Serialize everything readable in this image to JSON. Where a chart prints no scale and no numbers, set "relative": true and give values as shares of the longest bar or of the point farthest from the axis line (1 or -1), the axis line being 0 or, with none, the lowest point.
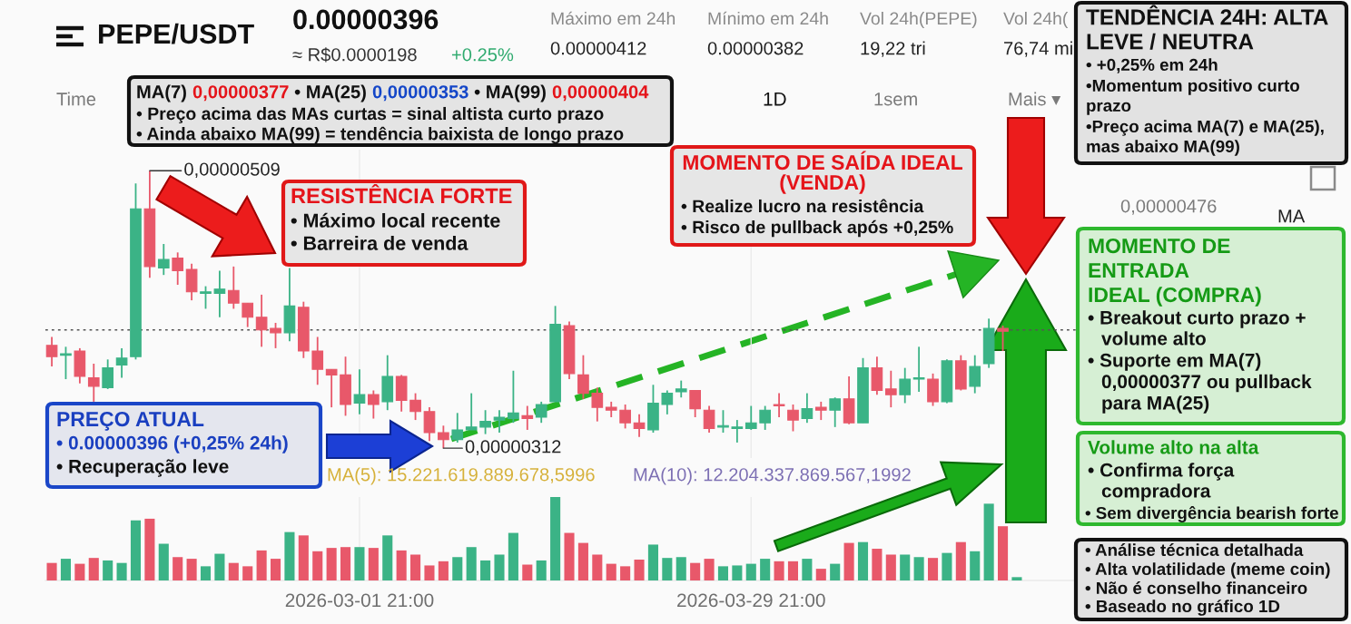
{
  "chart_data": [
    {
      "type": "candlestick",
      "title": "PEPE/USDT",
      "x": [
        "2026-02-07T21:00",
        "2026-02-08T21:00",
        "2026-02-09T21:00",
        "2026-02-10T21:00",
        "2026-02-11T21:00",
        "2026-02-12T21:00",
        "2026-02-13T21:00",
        "2026-02-14T21:00",
        "2026-02-15T21:00",
        "2026-02-16T21:00",
        "2026-02-17T21:00",
        "2026-02-18T21:00",
        "2026-02-19T21:00",
        "2026-02-20T21:00",
        "2026-02-21T21:00",
        "2026-02-22T21:00",
        "2026-02-23T21:00",
        "2026-02-24T21:00",
        "2026-02-25T21:00",
        "2026-02-26T21:00",
        "2026-02-27T21:00",
        "2026-02-28T21:00",
        "2026-03-01T21:00",
        "2026-03-02T21:00",
        "2026-03-03T21:00",
        "2026-03-04T21:00",
        "2026-03-05T21:00",
        "2026-03-06T21:00",
        "2026-03-07T21:00",
        "2026-03-08T21:00",
        "2026-03-09T21:00",
        "2026-03-10T21:00",
        "2026-03-11T21:00",
        "2026-03-12T21:00",
        "2026-03-13T21:00",
        "2026-03-14T21:00",
        "2026-03-15T21:00",
        "2026-03-16T21:00",
        "2026-03-17T21:00",
        "2026-03-18T21:00",
        "2026-03-19T21:00",
        "2026-03-20T21:00",
        "2026-03-21T21:00",
        "2026-03-22T21:00",
        "2026-03-23T21:00",
        "2026-03-24T21:00",
        "2026-03-25T21:00",
        "2026-03-26T21:00",
        "2026-03-27T21:00",
        "2026-03-28T21:00",
        "2026-03-29T21:00",
        "2026-03-30T21:00",
        "2026-03-31T21:00",
        "2026-04-01T21:00",
        "2026-04-02T21:00",
        "2026-04-03T21:00",
        "2026-04-04T21:00",
        "2026-04-05T21:00",
        "2026-04-06T21:00",
        "2026-04-07T21:00",
        "2026-04-08T21:00",
        "2026-04-09T21:00",
        "2026-04-10T21:00",
        "2026-04-11T21:00",
        "2026-04-12T21:00",
        "2026-04-13T21:00",
        "2026-04-14T21:00",
        "2026-04-15T21:00",
        "2026-04-16T21:00"
      ],
      "ohlc": [
        [
          3.85e-06,
          3.91e-06,
          3.7e-06,
          3.77e-06
        ],
        [
          3.78e-06,
          3.84e-06,
          3.61e-06,
          3.79e-06
        ],
        [
          3.81e-06,
          3.83e-06,
          3.58e-06,
          3.63e-06
        ],
        [
          3.62e-06,
          3.72e-06,
          3.45e-06,
          3.56e-06
        ],
        [
          3.55e-06,
          3.75e-06,
          3.54e-06,
          3.69e-06
        ],
        [
          3.71e-06,
          3.83e-06,
          3.62e-06,
          3.76e-06
        ],
        [
          3.77e-06,
          5e-06,
          3.75e-06,
          4.82e-06
        ],
        [
          4.82e-06,
          5.09e-06,
          4.33e-06,
          4.41e-06
        ],
        [
          4.4e-06,
          4.57e-06,
          4.35e-06,
          4.46e-06
        ],
        [
          4.47e-06,
          4.51e-06,
          4.28e-06,
          4.38e-06
        ],
        [
          4.39e-06,
          4.43e-06,
          4.17e-06,
          4.23e-06
        ],
        [
          4.22e-06,
          4.27e-06,
          4.11e-06,
          4.23e-06
        ],
        [
          4.22e-06,
          4.38e-06,
          4.05e-06,
          4.25e-06
        ],
        [
          4.24e-06,
          4.41e-06,
          4.11e-06,
          4.15e-06
        ],
        [
          4.15e-06,
          4.15e-06,
          3.98e-06,
          4.05e-06
        ],
        [
          4.05e-06,
          4.21e-06,
          3.84e-06,
          3.96e-06
        ],
        [
          3.97e-06,
          4.01e-06,
          3.83e-06,
          3.94e-06
        ],
        [
          3.94e-06,
          4.4e-06,
          3.88e-06,
          4.13e-06
        ],
        [
          4.12e-06,
          4.16e-06,
          3.76e-06,
          3.81e-06
        ],
        [
          3.81e-06,
          3.91e-06,
          3.57e-06,
          3.68e-06
        ],
        [
          3.68e-06,
          3.68e-06,
          3.41e-06,
          3.64e-06
        ],
        [
          3.64e-06,
          3.77e-06,
          3.35e-06,
          3.43e-06
        ],
        [
          3.44e-06,
          3.68e-06,
          3.36e-06,
          3.5e-06
        ],
        [
          3.5e-06,
          3.53e-06,
          3.33e-06,
          3.43e-06
        ],
        [
          3.45e-06,
          3.78e-06,
          3.39e-06,
          3.63e-06
        ],
        [
          3.63e-06,
          3.64e-06,
          3.38e-06,
          3.46e-06
        ],
        [
          3.46e-06,
          3.51e-06,
          3.32e-06,
          3.38e-06
        ],
        [
          3.38e-06,
          3.41e-06,
          3.17e-06,
          3.23e-06
        ],
        [
          3.23e-06,
          3.28e-06,
          3.12e-06,
          3.18e-06
        ],
        [
          3.18e-06,
          3.37e-06,
          3.16e-06,
          3.25e-06
        ],
        [
          3.25e-06,
          3.51e-06,
          3.25e-06,
          3.27e-06
        ],
        [
          3.27e-06,
          3.39e-06,
          3.22e-06,
          3.31e-06
        ],
        [
          3.32e-06,
          3.39e-06,
          3.23e-06,
          3.34e-06
        ],
        [
          3.33e-06,
          3.67e-06,
          3.3e-06,
          3.37e-06
        ],
        [
          3.35e-06,
          3.42e-06,
          3.25e-06,
          3.33e-06
        ],
        [
          3.34e-06,
          3.45e-06,
          3.3e-06,
          3.43e-06
        ],
        [
          3.45e-06,
          4.13e-06,
          3.45e-06,
          4e-06
        ],
        [
          3.99e-06,
          4.02e-06,
          3.61e-06,
          3.65e-06
        ],
        [
          3.64e-06,
          3.78e-06,
          3.47e-06,
          3.51e-06
        ],
        [
          3.51e-06,
          3.55e-06,
          3.31e-06,
          3.41e-06
        ],
        [
          3.41e-06,
          3.45e-06,
          3.34e-06,
          3.39e-06
        ],
        [
          3.39e-06,
          3.43e-06,
          3.26e-06,
          3.3e-06
        ],
        [
          3.3e-06,
          3.36e-06,
          3.2e-06,
          3.26e-06
        ],
        [
          3.25e-06,
          3.57e-06,
          3.23e-06,
          3.44e-06
        ],
        [
          3.43e-06,
          3.53e-06,
          3.36e-06,
          3.51e-06
        ],
        [
          3.52e-06,
          3.6e-06,
          3.48e-06,
          3.54e-06
        ],
        [
          3.53e-06,
          3.53e-06,
          3.34e-06,
          3.4e-06
        ],
        [
          3.39e-06,
          3.42e-06,
          3.23e-06,
          3.26e-06
        ],
        [
          3.27e-06,
          3.39e-06,
          3.23e-06,
          3.28e-06
        ],
        [
          3.26e-06,
          3.32e-06,
          3.16e-06,
          3.27e-06
        ],
        [
          3.26e-06,
          3.42e-06,
          3.25e-06,
          3.3e-06
        ],
        [
          3.3e-06,
          3.42e-06,
          3.25e-06,
          3.39e-06
        ],
        [
          3.43e-06,
          3.51e-06,
          3.34e-06,
          3.42e-06
        ],
        [
          3.39e-06,
          3.43e-06,
          3.24e-06,
          3.32e-06
        ],
        [
          3.33e-06,
          3.51e-06,
          3.3e-06,
          3.4e-06
        ],
        [
          3.41e-06,
          3.45e-06,
          3.32e-06,
          3.39e-06
        ],
        [
          3.39e-06,
          3.48e-06,
          3.27e-06,
          3.47e-06
        ],
        [
          3.47e-06,
          3.63e-06,
          3.29e-06,
          3.3e-06
        ],
        [
          3.3e-06,
          3.76e-06,
          3.3e-06,
          3.69e-06
        ],
        [
          3.69e-06,
          3.77e-06,
          3.5e-06,
          3.53e-06
        ],
        [
          3.54e-06,
          3.67e-06,
          3.41e-06,
          3.5e-06
        ],
        [
          3.5e-06,
          3.69e-06,
          3.44e-06,
          3.61e-06
        ],
        [
          3.61e-06,
          3.84e-06,
          3.52e-06,
          3.62e-06
        ],
        [
          3.61e-06,
          3.65e-06,
          3.42e-06,
          3.45e-06
        ],
        [
          3.45e-06,
          3.75e-06,
          3.44e-06,
          3.74e-06
        ],
        [
          3.74e-06,
          3.78e-06,
          3.53e-06,
          3.54e-06
        ],
        [
          3.56e-06,
          3.78e-06,
          3.51e-06,
          3.7e-06
        ],
        [
          3.72e-06,
          4.04e-06,
          3.69e-06,
          3.97e-06
        ],
        [
          3.97e-06,
          3.99e-06,
          3.81e-06,
          3.95e-06
        ]
      ],
      "colors": [
        "#e8586a",
        "#3bb386",
        "#e8586a",
        "#e8586a",
        "#3bb386",
        "#3bb386",
        "#3bb386",
        "#e8586a",
        "#3bb386",
        "#e8586a",
        "#e8586a",
        "#3bb386",
        "#3bb386",
        "#e8586a",
        "#e8586a",
        "#e8586a",
        "#e8586a",
        "#3bb386",
        "#e8586a",
        "#e8586a",
        "#e8586a",
        "#e8586a",
        "#3bb386",
        "#e8586a",
        "#3bb386",
        "#e8586a",
        "#e8586a",
        "#e8586a",
        "#e8586a",
        "#3bb386",
        "#3bb386",
        "#3bb386",
        "#3bb386",
        "#3bb386",
        "#e8586a",
        "#3bb386",
        "#3bb386",
        "#e8586a",
        "#e8586a",
        "#e8586a",
        "#e8586a",
        "#e8586a",
        "#e8586a",
        "#3bb386",
        "#3bb386",
        "#3bb386",
        "#e8586a",
        "#e8586a",
        "#3bb386",
        "#3bb386",
        "#3bb386",
        "#3bb386",
        "#e8586a",
        "#e8586a",
        "#3bb386",
        "#e8586a",
        "#3bb386",
        "#e8586a",
        "#3bb386",
        "#e8586a",
        "#e8586a",
        "#3bb386",
        "#3bb386",
        "#e8586a",
        "#3bb386",
        "#e8586a",
        "#3bb386",
        "#3bb386",
        "#e8586a"
      ],
      "xlim": [
        "2026-02-07T10:00",
        "2026-04-24T12:00"
      ],
      "xticks": [
        {
          "value": "2026-03-01T21:00",
          "label": null
        },
        {
          "value": "2026-03-29T21:00",
          "label": null
        }
      ],
      "ylim": [
        3.05e-06,
        5.24e-06
      ],
      "tick_labels": false,
      "grid": "x",
      "ref_lines": [
        {
          "axis": "y",
          "value": 3.96e-06,
          "color": "#555555",
          "line_style": "dotted"
        }
      ],
      "annotations": [
        "0.00000396",
        "≈ R$0.0000198",
        "+0.25%",
        "Máximo em 24h",
        "0.00000412",
        "Mínimo em 24h",
        "0.00000382",
        "Vol 24h(PEPE)",
        "19,22 tri",
        "Vol 24h(",
        "76,74 mi",
        "Time",
        "1D",
        "1sem",
        "Mais ▾",
        "MA(7)",
        "0,00000377",
        "• MA(25)",
        "0,00000353",
        "• MA(99)",
        "0,00000404",
        "• Preço acima das MAs curtas = sinal altista curto prazo",
        "• Ainda abaixo MA(99) = tendência baixista de longo prazo",
        {
          "text": "0,00000509",
          "x": "2026-02-14T21:00",
          "y": 5.09e-06
        },
        {
          "text": "0,00000312",
          "x": "2026-03-07T21:00",
          "y": 3.12e-06
        },
        "RESISTÊNCIA FORTE",
        "• Máximo local recente",
        "• Barreira de venda",
        "MOMENTO DE SAÍDA IDEAL\n(VENDA)",
        "• Realize lucro na resistência",
        "• Risco de pullback após +0,25%",
        "PREÇO ATUAL",
        "• 0.00000396 (+0,25% 24h)",
        "• Recuperação leve",
        "TENDÊNCIA 24H: ALTA\nLEVE / NEUTRA",
        "• +0,25% em 24h",
        "•Momentum positivo curto\nprazo",
        "•Preço acima MA(7) e MA(25),\nmas abaixo MA(99)",
        "MOMENTO DE\nENTRADA\nIDEAL (COMPRA)",
        "• Breakout curto prazo +\nvolume alto",
        "• Suporte em MA(7)\n0,00000377 ou pullback\npara MA(25)",
        "Volume alto na alta",
        "• Confirma força\ncompradora",
        "• Sem divergência bearish forte",
        "• Análise técnica detalhada",
        "• Alta volatilidade (meme coin)",
        "• Não é conselho financeiro",
        "• Baseado no gráfico 1D",
        "MA",
        "0,00000476"
      ]
    },
    {
      "type": "bar",
      "relative": true,
      "x": [
        "2026-02-07T21:00",
        "2026-02-08T21:00",
        "2026-02-09T21:00",
        "2026-02-10T21:00",
        "2026-02-11T21:00",
        "2026-02-12T21:00",
        "2026-02-13T21:00",
        "2026-02-14T21:00",
        "2026-02-15T21:00",
        "2026-02-16T21:00",
        "2026-02-17T21:00",
        "2026-02-18T21:00",
        "2026-02-19T21:00",
        "2026-02-20T21:00",
        "2026-02-21T21:00",
        "2026-02-22T21:00",
        "2026-02-23T21:00",
        "2026-02-24T21:00",
        "2026-02-25T21:00",
        "2026-02-26T21:00",
        "2026-02-27T21:00",
        "2026-02-28T21:00",
        "2026-03-01T21:00",
        "2026-03-02T21:00",
        "2026-03-03T21:00",
        "2026-03-04T21:00",
        "2026-03-05T21:00",
        "2026-03-06T21:00",
        "2026-03-07T21:00",
        "2026-03-08T21:00",
        "2026-03-09T21:00",
        "2026-03-10T21:00",
        "2026-03-11T21:00",
        "2026-03-12T21:00",
        "2026-03-13T21:00",
        "2026-03-14T21:00",
        "2026-03-15T21:00",
        "2026-03-16T21:00",
        "2026-03-17T21:00",
        "2026-03-18T21:00",
        "2026-03-19T21:00",
        "2026-03-20T21:00",
        "2026-03-21T21:00",
        "2026-03-22T21:00",
        "2026-03-23T21:00",
        "2026-03-24T21:00",
        "2026-03-25T21:00",
        "2026-03-26T21:00",
        "2026-03-27T21:00",
        "2026-03-28T21:00",
        "2026-03-29T21:00",
        "2026-03-30T21:00",
        "2026-03-31T21:00",
        "2026-04-01T21:00",
        "2026-04-02T21:00",
        "2026-04-03T21:00",
        "2026-04-04T21:00",
        "2026-04-05T21:00",
        "2026-04-06T21:00",
        "2026-04-07T21:00",
        "2026-04-08T21:00",
        "2026-04-09T21:00",
        "2026-04-10T21:00",
        "2026-04-11T21:00",
        "2026-04-12T21:00",
        "2026-04-13T21:00",
        "2026-04-14T21:00",
        "2026-04-15T21:00",
        "2026-04-16T21:00",
        "2026-04-17T21:00"
      ],
      "values": [
        0.21,
        0.26,
        0.2,
        0.27,
        0.24,
        0.21,
        0.72,
        0.74,
        0.44,
        0.28,
        0.26,
        0.17,
        0.32,
        0.21,
        0.17,
        0.36,
        0.26,
        0.58,
        0.54,
        0.35,
        0.39,
        0.4,
        0.4,
        0.39,
        0.54,
        0.36,
        0.31,
        0.18,
        0.23,
        0.28,
        0.4,
        0.24,
        0.31,
        0.57,
        0.19,
        0.24,
        1.0,
        0.57,
        0.45,
        0.31,
        0.2,
        0.17,
        0.25,
        0.43,
        0.27,
        0.28,
        0.21,
        0.26,
        0.17,
        0.18,
        0.2,
        0.26,
        0.23,
        0.23,
        0.26,
        0.14,
        0.2,
        0.45,
        0.46,
        0.38,
        0.31,
        0.31,
        0.28,
        0.27,
        0.33,
        0.46,
        0.35,
        0.92,
        0.65,
        0.04
      ],
      "colors": [
        "#e8586a",
        "#3bb386",
        "#e8586a",
        "#e8586a",
        "#3bb386",
        "#3bb386",
        "#3bb386",
        "#e8586a",
        "#3bb386",
        "#e8586a",
        "#e8586a",
        "#3bb386",
        "#3bb386",
        "#e8586a",
        "#e8586a",
        "#e8586a",
        "#e8586a",
        "#3bb386",
        "#e8586a",
        "#e8586a",
        "#e8586a",
        "#e8586a",
        "#3bb386",
        "#e8586a",
        "#3bb386",
        "#e8586a",
        "#e8586a",
        "#e8586a",
        "#e8586a",
        "#3bb386",
        "#3bb386",
        "#3bb386",
        "#3bb386",
        "#3bb386",
        "#e8586a",
        "#3bb386",
        "#3bb386",
        "#e8586a",
        "#e8586a",
        "#e8586a",
        "#e8586a",
        "#e8586a",
        "#e8586a",
        "#3bb386",
        "#3bb386",
        "#3bb386",
        "#e8586a",
        "#e8586a",
        "#3bb386",
        "#3bb386",
        "#3bb386",
        "#3bb386",
        "#e8586a",
        "#e8586a",
        "#3bb386",
        "#e8586a",
        "#3bb386",
        "#e8586a",
        "#3bb386",
        "#e8586a",
        "#e8586a",
        "#3bb386",
        "#3bb386",
        "#e8586a",
        "#3bb386",
        "#e8586a",
        "#3bb386",
        "#3bb386",
        "#e8586a",
        "#3bb386"
      ],
      "xlim": [
        "2026-02-07T10:00",
        "2026-04-24T12:00"
      ],
      "xticks": [
        {
          "value": "2026-03-01T21:00",
          "label": "2026-03-01 21:00"
        },
        {
          "value": "2026-03-29T21:00",
          "label": "2026-03-29 21:00"
        }
      ],
      "tick_labels": "x",
      "grid": "x",
      "annotations": [
        "MA(5): 15.221.619.889.678,5996",
        "MA(10): 12.204.337.869.567,1992"
      ]
    }
  ]
}
